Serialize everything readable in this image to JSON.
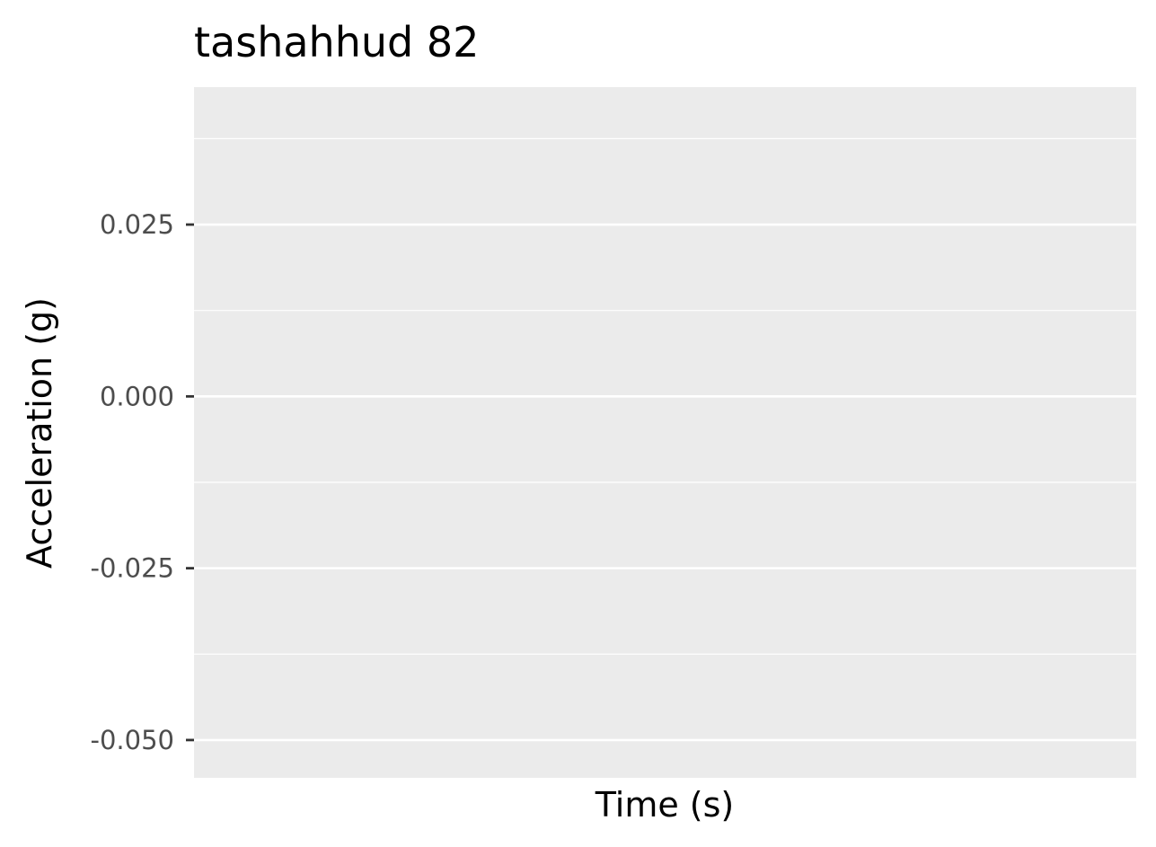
{
  "chart_data": {
    "type": "line",
    "title": "tashahhud 82",
    "xlabel": "Time (s)",
    "ylabel": "Acceleration (g)",
    "x": [],
    "series": [],
    "yticks": [
      0.025,
      0.0,
      -0.025,
      -0.05
    ],
    "ytick_labels": [
      "0.025",
      "0.000",
      "-0.025",
      "-0.050"
    ],
    "ylim": [
      -0.0555,
      0.045
    ],
    "xticks": [],
    "grid": true,
    "legend": "none",
    "colors": {
      "panel_background": "#ebebeb",
      "grid_major": "#ffffff",
      "grid_minor": "#ffffff",
      "tick_mark": "#333333",
      "tick_label": "#4d4d4d",
      "text": "#000000"
    }
  }
}
